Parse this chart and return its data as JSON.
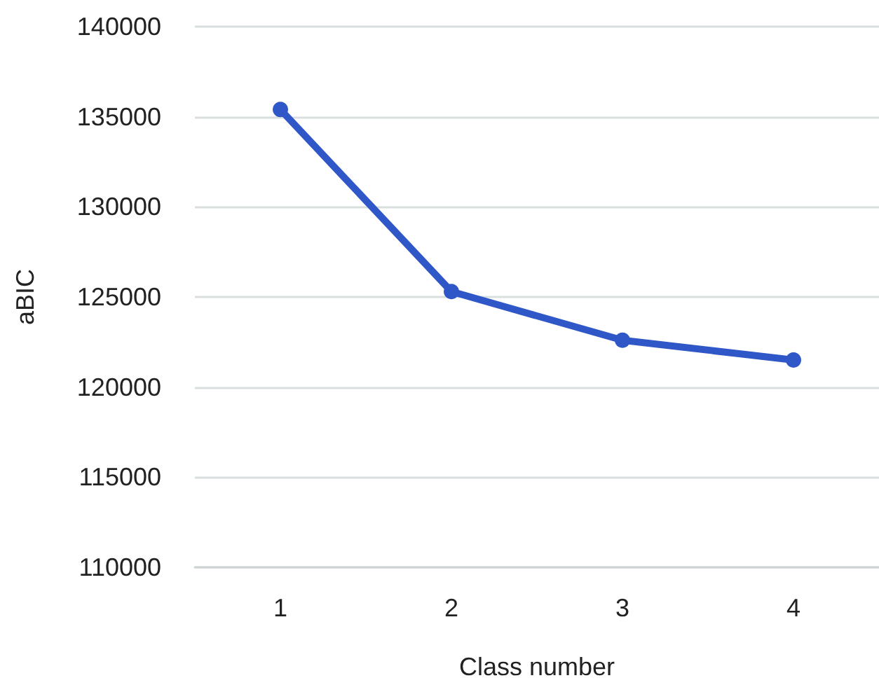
{
  "chart_data": {
    "type": "line",
    "xlabel": "Class number",
    "ylabel": "aBIC",
    "categories": [
      "1",
      "2",
      "3",
      "4"
    ],
    "series": [
      {
        "color": "#3057c8",
        "values": [
          135400,
          125300,
          122600,
          121500
        ]
      }
    ],
    "ylim": [
      110000,
      140000
    ],
    "yticks": [
      110000,
      115000,
      120000,
      125000,
      130000,
      135000,
      140000
    ],
    "grid": "y",
    "marker": "circle",
    "line_style": "solid"
  }
}
